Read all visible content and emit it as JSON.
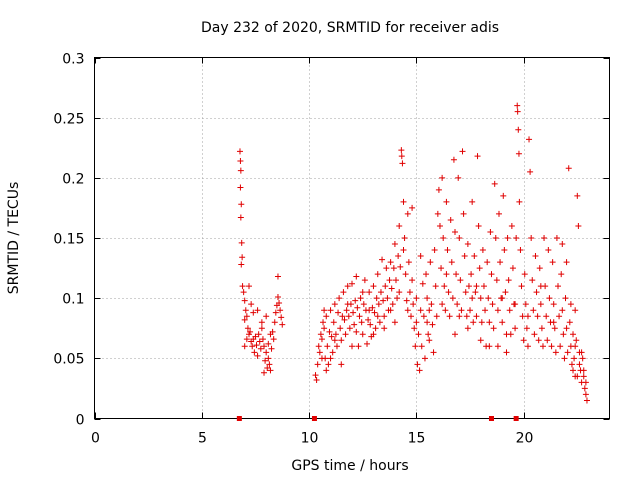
{
  "chart_data": {
    "type": "scatter",
    "title": "Day 232 of 2020, SRMTID for receiver adis",
    "xlabel": "GPS time / hours",
    "ylabel": "SRMTID / TECUs",
    "xlim": [
      0,
      24
    ],
    "ylim": [
      0,
      0.3
    ],
    "x_ticks": [
      0,
      5,
      10,
      15,
      20
    ],
    "x_tick_labels": [
      "0",
      "5",
      "10",
      "15",
      "20"
    ],
    "y_ticks": [
      0,
      0.05,
      0.1,
      0.15,
      0.2,
      0.25,
      0.3
    ],
    "y_tick_labels": [
      "0",
      "0.05",
      "0.1",
      "0.15",
      "0.2",
      "0.25",
      "0.3"
    ],
    "grid": true,
    "marker": "plus",
    "series_color": "#e00000",
    "baseline_markers_x": [
      6.75,
      10.25,
      18.5,
      19.65
    ],
    "points": [
      [
        6.78,
        0.222
      ],
      [
        6.8,
        0.214
      ],
      [
        6.82,
        0.206
      ],
      [
        6.8,
        0.192
      ],
      [
        6.84,
        0.178
      ],
      [
        6.82,
        0.167
      ],
      [
        6.86,
        0.146
      ],
      [
        6.88,
        0.134
      ],
      [
        6.84,
        0.128
      ],
      [
        6.9,
        0.11
      ],
      [
        6.95,
        0.105
      ],
      [
        7.0,
        0.098
      ],
      [
        7.05,
        0.09
      ],
      [
        7.0,
        0.082
      ],
      [
        7.1,
        0.085
      ],
      [
        7.15,
        0.075
      ],
      [
        7.2,
        0.07
      ],
      [
        7.1,
        0.066
      ],
      [
        7.25,
        0.072
      ],
      [
        7.3,
        0.064
      ],
      [
        7.35,
        0.06
      ],
      [
        7.4,
        0.066
      ],
      [
        7.45,
        0.055
      ],
      [
        7.5,
        0.068
      ],
      [
        7.55,
        0.061
      ],
      [
        7.6,
        0.052
      ],
      [
        7.65,
        0.07
      ],
      [
        7.7,
        0.064
      ],
      [
        7.75,
        0.058
      ],
      [
        7.8,
        0.075
      ],
      [
        7.85,
        0.066
      ],
      [
        7.9,
        0.06
      ],
      [
        7.95,
        0.048
      ],
      [
        8.0,
        0.055
      ],
      [
        8.05,
        0.042
      ],
      [
        8.1,
        0.05
      ],
      [
        8.15,
        0.045
      ],
      [
        8.2,
        0.04
      ],
      [
        8.25,
        0.058
      ],
      [
        8.3,
        0.072
      ],
      [
        8.35,
        0.066
      ],
      [
        8.4,
        0.08
      ],
      [
        8.45,
        0.088
      ],
      [
        8.5,
        0.094
      ],
      [
        8.55,
        0.101
      ],
      [
        8.6,
        0.096
      ],
      [
        8.65,
        0.09
      ],
      [
        8.7,
        0.084
      ],
      [
        8.75,
        0.078
      ],
      [
        8.55,
        0.118
      ],
      [
        7.3,
        0.095
      ],
      [
        7.6,
        0.09
      ],
      [
        8.0,
        0.085
      ],
      [
        8.2,
        0.07
      ],
      [
        7.2,
        0.11
      ],
      [
        7.4,
        0.088
      ],
      [
        7.8,
        0.08
      ],
      [
        8.1,
        0.062
      ],
      [
        7.0,
        0.06
      ],
      [
        7.9,
        0.038
      ],
      [
        10.3,
        0.036
      ],
      [
        10.35,
        0.032
      ],
      [
        10.4,
        0.045
      ],
      [
        10.45,
        0.06
      ],
      [
        10.5,
        0.055
      ],
      [
        10.55,
        0.07
      ],
      [
        10.6,
        0.066
      ],
      [
        10.65,
        0.08
      ],
      [
        10.7,
        0.075
      ],
      [
        10.75,
        0.05
      ],
      [
        10.8,
        0.085
      ],
      [
        10.85,
        0.06
      ],
      [
        10.9,
        0.045
      ],
      [
        10.95,
        0.072
      ],
      [
        11.0,
        0.09
      ],
      [
        11.05,
        0.068
      ],
      [
        11.1,
        0.055
      ],
      [
        11.15,
        0.08
      ],
      [
        11.2,
        0.095
      ],
      [
        11.25,
        0.07
      ],
      [
        11.3,
        0.06
      ],
      [
        11.35,
        0.088
      ],
      [
        11.4,
        0.1
      ],
      [
        11.45,
        0.075
      ],
      [
        11.5,
        0.065
      ],
      [
        11.55,
        0.085
      ],
      [
        11.6,
        0.105
      ],
      [
        11.65,
        0.082
      ],
      [
        11.7,
        0.07
      ],
      [
        11.75,
        0.09
      ],
      [
        11.8,
        0.11
      ],
      [
        11.85,
        0.085
      ],
      [
        11.9,
        0.075
      ],
      [
        11.95,
        0.095
      ],
      [
        12.0,
        0.112
      ],
      [
        12.05,
        0.088
      ],
      [
        12.1,
        0.078
      ],
      [
        12.15,
        0.098
      ],
      [
        12.2,
        0.118
      ],
      [
        12.25,
        0.092
      ],
      [
        12.3,
        0.06
      ],
      [
        12.35,
        0.085
      ],
      [
        12.4,
        0.1
      ],
      [
        12.45,
        0.08
      ],
      [
        12.5,
        0.07
      ],
      [
        12.55,
        0.095
      ],
      [
        12.6,
        0.115
      ],
      [
        12.65,
        0.09
      ],
      [
        12.7,
        0.062
      ],
      [
        12.75,
        0.082
      ],
      [
        12.8,
        0.105
      ],
      [
        12.85,
        0.078
      ],
      [
        12.9,
        0.068
      ],
      [
        12.95,
        0.092
      ],
      [
        13.0,
        0.11
      ],
      [
        13.05,
        0.088
      ],
      [
        13.1,
        0.075
      ],
      [
        13.15,
        0.1
      ],
      [
        13.2,
        0.12
      ],
      [
        13.25,
        0.095
      ],
      [
        13.3,
        0.08
      ],
      [
        13.35,
        0.105
      ],
      [
        13.4,
        0.132
      ],
      [
        13.45,
        0.098
      ],
      [
        13.5,
        0.085
      ],
      [
        13.55,
        0.11
      ],
      [
        13.6,
        0.125
      ],
      [
        13.65,
        0.1
      ],
      [
        13.7,
        0.09
      ],
      [
        13.75,
        0.115
      ],
      [
        13.8,
        0.13
      ],
      [
        13.85,
        0.108
      ],
      [
        13.9,
        0.095
      ],
      [
        13.95,
        0.125
      ],
      [
        14.0,
        0.145
      ],
      [
        14.05,
        0.115
      ],
      [
        14.1,
        0.1
      ],
      [
        14.15,
        0.135
      ],
      [
        14.2,
        0.16
      ],
      [
        14.25,
        0.126
      ],
      [
        14.3,
        0.223
      ],
      [
        14.32,
        0.218
      ],
      [
        14.35,
        0.212
      ],
      [
        14.4,
        0.18
      ],
      [
        14.45,
        0.15
      ],
      [
        14.5,
        0.12
      ],
      [
        14.55,
        0.098
      ],
      [
        14.6,
        0.17
      ],
      [
        14.65,
        0.13
      ],
      [
        14.7,
        0.105
      ],
      [
        14.75,
        0.085
      ],
      [
        14.8,
        0.115
      ],
      [
        14.85,
        0.095
      ],
      [
        14.9,
        0.075
      ],
      [
        14.95,
        0.06
      ],
      [
        15.0,
        0.1
      ],
      [
        15.05,
        0.045
      ],
      [
        15.1,
        0.07
      ],
      [
        15.15,
        0.04
      ],
      [
        15.2,
        0.09
      ],
      [
        15.25,
        0.06
      ],
      [
        15.3,
        0.112
      ],
      [
        15.35,
        0.085
      ],
      [
        15.4,
        0.05
      ],
      [
        15.45,
        0.12
      ],
      [
        15.5,
        0.1
      ],
      [
        15.55,
        0.07
      ],
      [
        15.6,
        0.065
      ],
      [
        15.65,
        0.13
      ],
      [
        15.7,
        0.095
      ],
      [
        15.75,
        0.078
      ],
      [
        15.8,
        0.055
      ],
      [
        15.85,
        0.14
      ],
      [
        15.9,
        0.11
      ],
      [
        15.95,
        0.085
      ],
      [
        16.0,
        0.17
      ],
      [
        16.05,
        0.19
      ],
      [
        16.1,
        0.16
      ],
      [
        16.15,
        0.125
      ],
      [
        16.2,
        0.2
      ],
      [
        16.25,
        0.15
      ],
      [
        16.3,
        0.11
      ],
      [
        16.35,
        0.09
      ],
      [
        16.4,
        0.18
      ],
      [
        16.45,
        0.14
      ],
      [
        16.5,
        0.105
      ],
      [
        16.55,
        0.085
      ],
      [
        16.6,
        0.165
      ],
      [
        16.65,
        0.13
      ],
      [
        16.7,
        0.1
      ],
      [
        16.75,
        0.215
      ],
      [
        16.8,
        0.155
      ],
      [
        16.85,
        0.12
      ],
      [
        16.9,
        0.095
      ],
      [
        16.95,
        0.2
      ],
      [
        17.0,
        0.15
      ],
      [
        17.05,
        0.115
      ],
      [
        17.1,
        0.09
      ],
      [
        17.15,
        0.222
      ],
      [
        17.2,
        0.17
      ],
      [
        17.25,
        0.135
      ],
      [
        17.3,
        0.105
      ],
      [
        17.35,
        0.085
      ],
      [
        17.4,
        0.145
      ],
      [
        17.45,
        0.11
      ],
      [
        17.5,
        0.09
      ],
      [
        17.55,
        0.12
      ],
      [
        17.6,
        0.1
      ],
      [
        17.65,
        0.08
      ],
      [
        17.7,
        0.135
      ],
      [
        17.75,
        0.105
      ],
      [
        17.8,
        0.085
      ],
      [
        17.85,
        0.218
      ],
      [
        17.9,
        0.16
      ],
      [
        17.95,
        0.125
      ],
      [
        18.0,
        0.1
      ],
      [
        18.05,
        0.08
      ],
      [
        18.1,
        0.14
      ],
      [
        18.15,
        0.11
      ],
      [
        18.2,
        0.09
      ],
      [
        18.25,
        0.06
      ],
      [
        18.3,
        0.13
      ],
      [
        18.35,
        0.1
      ],
      [
        18.4,
        0.08
      ],
      [
        18.45,
        0.155
      ],
      [
        18.5,
        0.12
      ],
      [
        18.55,
        0.095
      ],
      [
        18.6,
        0.075
      ],
      [
        18.65,
        0.195
      ],
      [
        18.7,
        0.15
      ],
      [
        18.75,
        0.115
      ],
      [
        18.8,
        0.09
      ],
      [
        18.85,
        0.17
      ],
      [
        18.9,
        0.13
      ],
      [
        18.95,
        0.1
      ],
      [
        19.0,
        0.08
      ],
      [
        19.05,
        0.185
      ],
      [
        19.1,
        0.14
      ],
      [
        19.15,
        0.105
      ],
      [
        19.2,
        0.07
      ],
      [
        19.25,
        0.15
      ],
      [
        19.3,
        0.115
      ],
      [
        19.35,
        0.09
      ],
      [
        19.4,
        0.07
      ],
      [
        19.45,
        0.16
      ],
      [
        19.5,
        0.125
      ],
      [
        19.55,
        0.095
      ],
      [
        19.6,
        0.075
      ],
      [
        19.65,
        0.15
      ],
      [
        19.7,
        0.26
      ],
      [
        19.72,
        0.255
      ],
      [
        19.75,
        0.24
      ],
      [
        19.78,
        0.22
      ],
      [
        19.8,
        0.18
      ],
      [
        19.85,
        0.14
      ],
      [
        19.9,
        0.11
      ],
      [
        19.95,
        0.085
      ],
      [
        20.0,
        0.065
      ],
      [
        20.05,
        0.12
      ],
      [
        20.1,
        0.095
      ],
      [
        20.15,
        0.075
      ],
      [
        20.2,
        0.06
      ],
      [
        20.25,
        0.232
      ],
      [
        20.3,
        0.205
      ],
      [
        20.35,
        0.15
      ],
      [
        20.4,
        0.115
      ],
      [
        20.45,
        0.09
      ],
      [
        20.5,
        0.07
      ],
      [
        20.55,
        0.135
      ],
      [
        20.6,
        0.105
      ],
      [
        20.65,
        0.085
      ],
      [
        20.7,
        0.065
      ],
      [
        20.75,
        0.125
      ],
      [
        20.8,
        0.095
      ],
      [
        20.85,
        0.075
      ],
      [
        20.9,
        0.06
      ],
      [
        20.95,
        0.15
      ],
      [
        21.0,
        0.11
      ],
      [
        21.05,
        0.085
      ],
      [
        21.1,
        0.065
      ],
      [
        21.15,
        0.14
      ],
      [
        21.2,
        0.1
      ],
      [
        21.25,
        0.08
      ],
      [
        21.3,
        0.06
      ],
      [
        21.35,
        0.13
      ],
      [
        21.4,
        0.095
      ],
      [
        21.45,
        0.075
      ],
      [
        21.5,
        0.055
      ],
      [
        21.55,
        0.15
      ],
      [
        21.6,
        0.11
      ],
      [
        21.65,
        0.085
      ],
      [
        21.7,
        0.06
      ],
      [
        21.75,
        0.12
      ],
      [
        21.8,
        0.09
      ],
      [
        21.85,
        0.07
      ],
      [
        21.9,
        0.05
      ],
      [
        21.95,
        0.1
      ],
      [
        22.0,
        0.075
      ],
      [
        22.05,
        0.055
      ],
      [
        22.1,
        0.208
      ],
      [
        22.15,
        0.08
      ],
      [
        22.2,
        0.06
      ],
      [
        22.25,
        0.045
      ],
      [
        22.3,
        0.07
      ],
      [
        22.35,
        0.05
      ],
      [
        22.4,
        0.035
      ],
      [
        22.45,
        0.065
      ],
      [
        22.5,
        0.185
      ],
      [
        22.55,
        0.16
      ],
      [
        22.6,
        0.055
      ],
      [
        22.65,
        0.04
      ],
      [
        22.7,
        0.03
      ],
      [
        22.75,
        0.05
      ],
      [
        22.8,
        0.035
      ],
      [
        22.85,
        0.025
      ],
      [
        22.9,
        0.02
      ],
      [
        22.6,
        0.045
      ],
      [
        22.7,
        0.055
      ],
      [
        22.8,
        0.04
      ],
      [
        22.9,
        0.03
      ],
      [
        22.95,
        0.015
      ],
      [
        22.5,
        0.035
      ],
      [
        22.4,
        0.06
      ],
      [
        22.3,
        0.04
      ],
      [
        16.2,
        0.095
      ],
      [
        16.8,
        0.07
      ],
      [
        17.4,
        0.075
      ],
      [
        17.6,
        0.18
      ],
      [
        18.0,
        0.065
      ],
      [
        18.8,
        0.06
      ],
      [
        19.2,
        0.055
      ],
      [
        15.5,
        0.08
      ],
      [
        15.0,
        0.08
      ],
      [
        14.6,
        0.09
      ],
      [
        14.2,
        0.105
      ],
      [
        13.8,
        0.09
      ],
      [
        13.2,
        0.085
      ],
      [
        12.8,
        0.09
      ],
      [
        12.2,
        0.072
      ],
      [
        11.8,
        0.095
      ],
      [
        11.2,
        0.065
      ],
      [
        10.8,
        0.04
      ],
      [
        10.6,
        0.05
      ],
      [
        10.7,
        0.09
      ],
      [
        11.0,
        0.05
      ],
      [
        11.5,
        0.045
      ],
      [
        12.0,
        0.06
      ],
      [
        12.5,
        0.105
      ],
      [
        13.0,
        0.07
      ],
      [
        13.5,
        0.075
      ],
      [
        14.0,
        0.08
      ],
      [
        14.4,
        0.14
      ],
      [
        14.8,
        0.175
      ],
      [
        15.2,
        0.135
      ],
      [
        15.6,
        0.09
      ],
      [
        16.4,
        0.12
      ],
      [
        17.0,
        0.085
      ],
      [
        17.8,
        0.11
      ],
      [
        18.4,
        0.06
      ],
      [
        19.0,
        0.1
      ],
      [
        19.6,
        0.095
      ],
      [
        20.2,
        0.085
      ],
      [
        20.8,
        0.11
      ],
      [
        21.4,
        0.08
      ],
      [
        21.8,
        0.145
      ],
      [
        22.0,
        0.13
      ],
      [
        22.2,
        0.095
      ],
      [
        22.4,
        0.09
      ]
    ]
  }
}
